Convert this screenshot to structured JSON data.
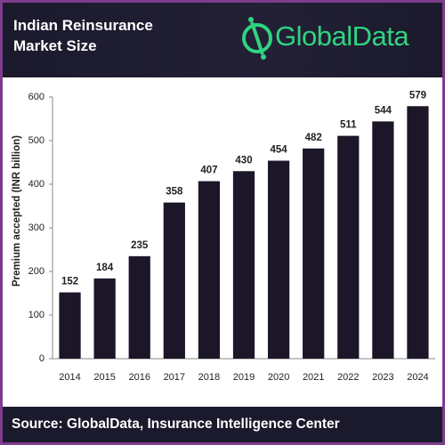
{
  "header": {
    "title": "Indian Reinsurance Market Size",
    "logo": "GlobalData"
  },
  "chart_data": {
    "type": "bar",
    "y_label": "Premium accepted (INR billion)",
    "categories": [
      "2014",
      "2015",
      "2016",
      "2017",
      "2018",
      "2019",
      "2020",
      "2021",
      "2022",
      "2023",
      "2024"
    ],
    "values": [
      152,
      184,
      235,
      358,
      407,
      430,
      454,
      482,
      511,
      544,
      579
    ],
    "color": "#1c1628",
    "ylim": [
      0,
      600
    ],
    "yticks": [
      0,
      100,
      200,
      300,
      400,
      500,
      600
    ],
    "grid": false
  },
  "footer": {
    "source": "Source: GlobalData, Insurance Intelligence Center"
  }
}
